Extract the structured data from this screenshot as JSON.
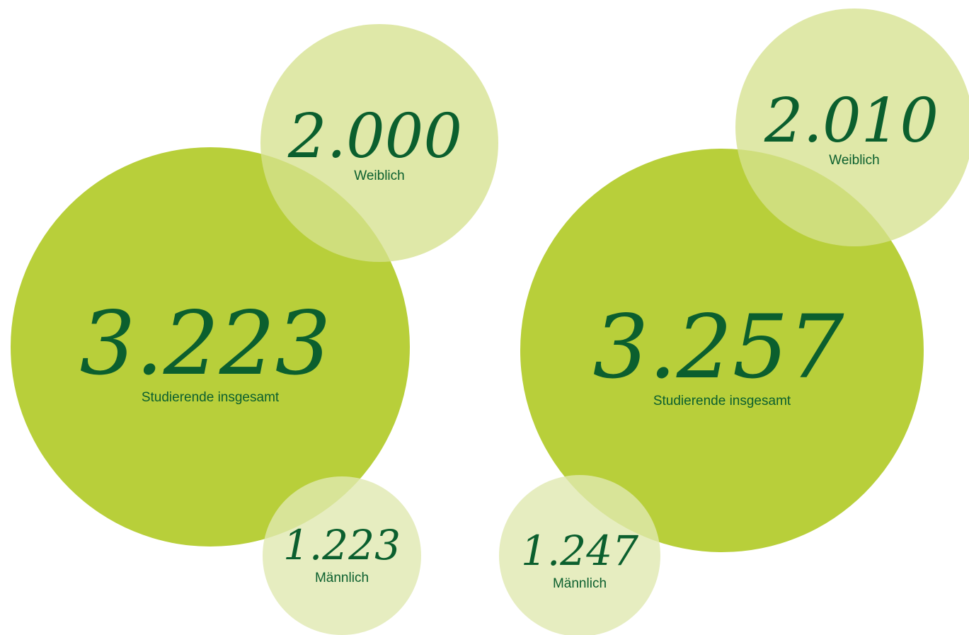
{
  "groups": [
    {
      "total": {
        "value": "3.223",
        "label": "Studierende insgesamt"
      },
      "female": {
        "value": "2.000",
        "label": "Weiblich"
      },
      "male": {
        "value": "1.223",
        "label": "Männlich"
      }
    },
    {
      "total": {
        "value": "3.257",
        "label": "Studierende insgesamt"
      },
      "female": {
        "value": "2.010",
        "label": "Weiblich"
      },
      "male": {
        "value": "1.247",
        "label": "Männlich"
      }
    }
  ]
}
